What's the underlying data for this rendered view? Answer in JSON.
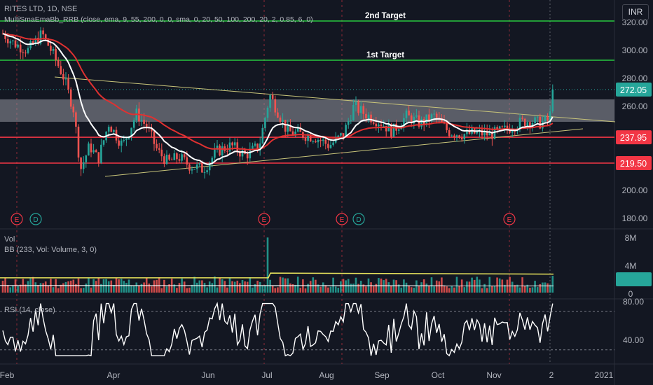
{
  "header": {
    "symbol_line": "RITES LTD, 1D, NSE",
    "indicator_line": "MultiSmaEmaBb_RRB (close, ema, 9, 55, 200, 0, 0, sma, 0, 20, 50, 100, 200, 20, 2, 0.85, 6, 0)",
    "currency": "INR"
  },
  "volume_pane": {
    "title": "Vol",
    "indicator": "BB (233, Vol: Volume, 3, 0)",
    "ticks": [
      "8M",
      "4M",
      "0"
    ]
  },
  "rsi_pane": {
    "title": "RSI (14, close)",
    "ticks": [
      "80.00",
      "40.00"
    ]
  },
  "chart_data": {
    "type": "candlestick",
    "price_axis": {
      "ticks": [
        320,
        300,
        280,
        260,
        240,
        220,
        200,
        180
      ],
      "tick_labels": [
        "320.00",
        "300.00",
        "280.00",
        "260.00",
        "",
        "",
        "200.00",
        "180.00"
      ]
    },
    "x_axis_labels": [
      "Feb",
      "Apr",
      "Jun",
      "Jul",
      "Aug",
      "Sep",
      "Oct",
      "Nov",
      "2",
      "2021"
    ],
    "last_price": "272.05",
    "levels": [
      {
        "label": "2nd Target",
        "value": 321,
        "color": "#28c940"
      },
      {
        "label": "1st Target",
        "value": 293,
        "color": "#28c940"
      },
      {
        "label": "237.95",
        "value": 237.95,
        "color": "#f23645"
      },
      {
        "label": "219.50",
        "value": 219.5,
        "color": "#f23645"
      }
    ],
    "zone": {
      "from": 249,
      "to": 265
    },
    "event_markers": [
      "E",
      "D",
      "E",
      "E",
      "D",
      "E"
    ],
    "colors": {
      "up": "#26a69a",
      "down": "#ef5350",
      "ema_fast": "#ffffff",
      "ema_slow": "#e03131",
      "trendline": "#c8c47a",
      "rsi": "#ffffff",
      "price_badge": "#26a69a",
      "level_badge": "#f23645"
    }
  }
}
